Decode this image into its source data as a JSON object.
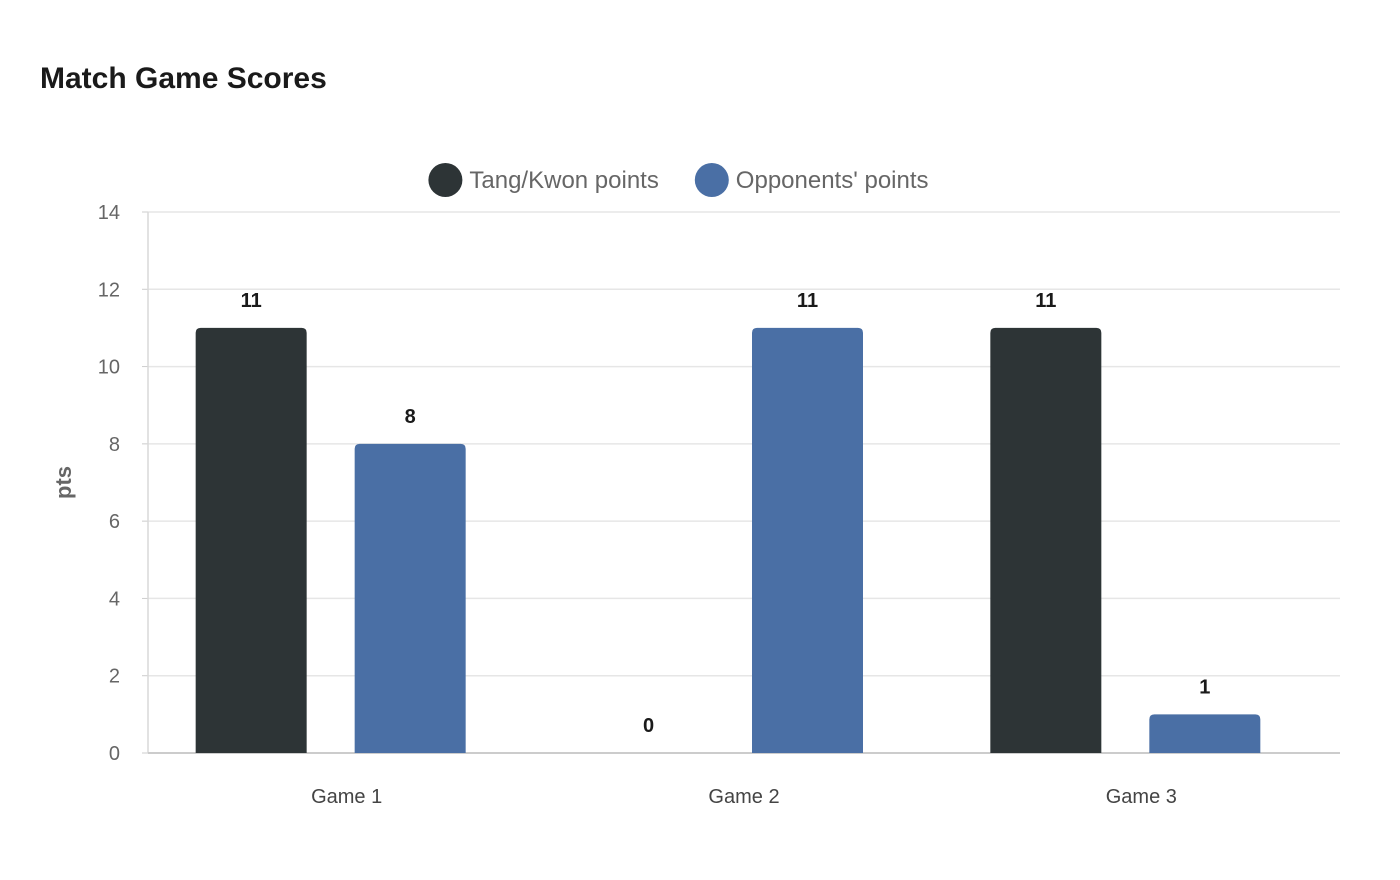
{
  "chart_data": {
    "type": "bar",
    "title": "Match Game Scores",
    "xlabel": "",
    "ylabel": "pts",
    "categories": [
      "Game 1",
      "Game 2",
      "Game 3"
    ],
    "series": [
      {
        "name": "Tang/Kwon points",
        "values": [
          11,
          0,
          11
        ],
        "color": "#2d3436"
      },
      {
        "name": "Opponents' points",
        "values": [
          8,
          11,
          1
        ],
        "color": "#4a6fa5"
      }
    ],
    "ylim": [
      0,
      14
    ],
    "yticks": [
      0,
      2,
      4,
      6,
      8,
      10,
      12,
      14
    ],
    "grid": true,
    "legend_position": "top-center",
    "data_labels": true
  }
}
